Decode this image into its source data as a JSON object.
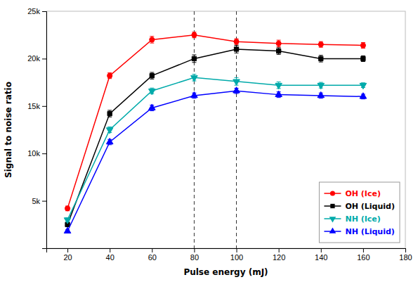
{
  "chart_data": {
    "type": "line",
    "x_label": "Pulse energy (mJ)",
    "y_label": "Signal to noise ratio",
    "x": [
      20,
      40,
      60,
      80,
      100,
      120,
      140,
      160
    ],
    "series": [
      {
        "name": "OH (Ice)",
        "color": "#ff0000",
        "marker": "circle",
        "values": [
          4200,
          18200,
          22000,
          22500,
          21800,
          21600,
          21500,
          21400
        ],
        "errors": [
          250,
          300,
          350,
          300,
          300,
          350,
          300,
          300
        ]
      },
      {
        "name": "OH (Liquid)",
        "color": "#000000",
        "marker": "square",
        "values": [
          2500,
          14200,
          18200,
          20000,
          21000,
          20800,
          20000,
          20000
        ],
        "errors": [
          200,
          350,
          350,
          400,
          400,
          350,
          350,
          300
        ]
      },
      {
        "name": "NH (Ice)",
        "color": "#00aaaa",
        "marker": "triangle-down",
        "values": [
          3000,
          12500,
          16600,
          18000,
          17600,
          17200,
          17200,
          17200
        ],
        "errors": [
          200,
          300,
          300,
          350,
          400,
          350,
          300,
          250
        ]
      },
      {
        "name": "NH (Liquid)",
        "color": "#0000ff",
        "marker": "triangle-up",
        "values": [
          1800,
          11200,
          14800,
          16100,
          16600,
          16200,
          16100,
          16000
        ],
        "errors": [
          150,
          280,
          300,
          280,
          280,
          300,
          280,
          250
        ]
      }
    ],
    "vlines": [
      80,
      100
    ],
    "xlim": [
      10,
      180
    ],
    "ylim": [
      0,
      25000
    ],
    "xticks": [
      20,
      40,
      60,
      80,
      100,
      120,
      140,
      160,
      180
    ],
    "yticks": [
      {
        "value": 5000,
        "label": "5k"
      },
      {
        "value": 10000,
        "label": "10k"
      },
      {
        "value": 15000,
        "label": "15k"
      },
      {
        "value": 20000,
        "label": "20k"
      },
      {
        "value": 25000,
        "label": "25k"
      }
    ],
    "grid": false,
    "legend": "lower right"
  }
}
